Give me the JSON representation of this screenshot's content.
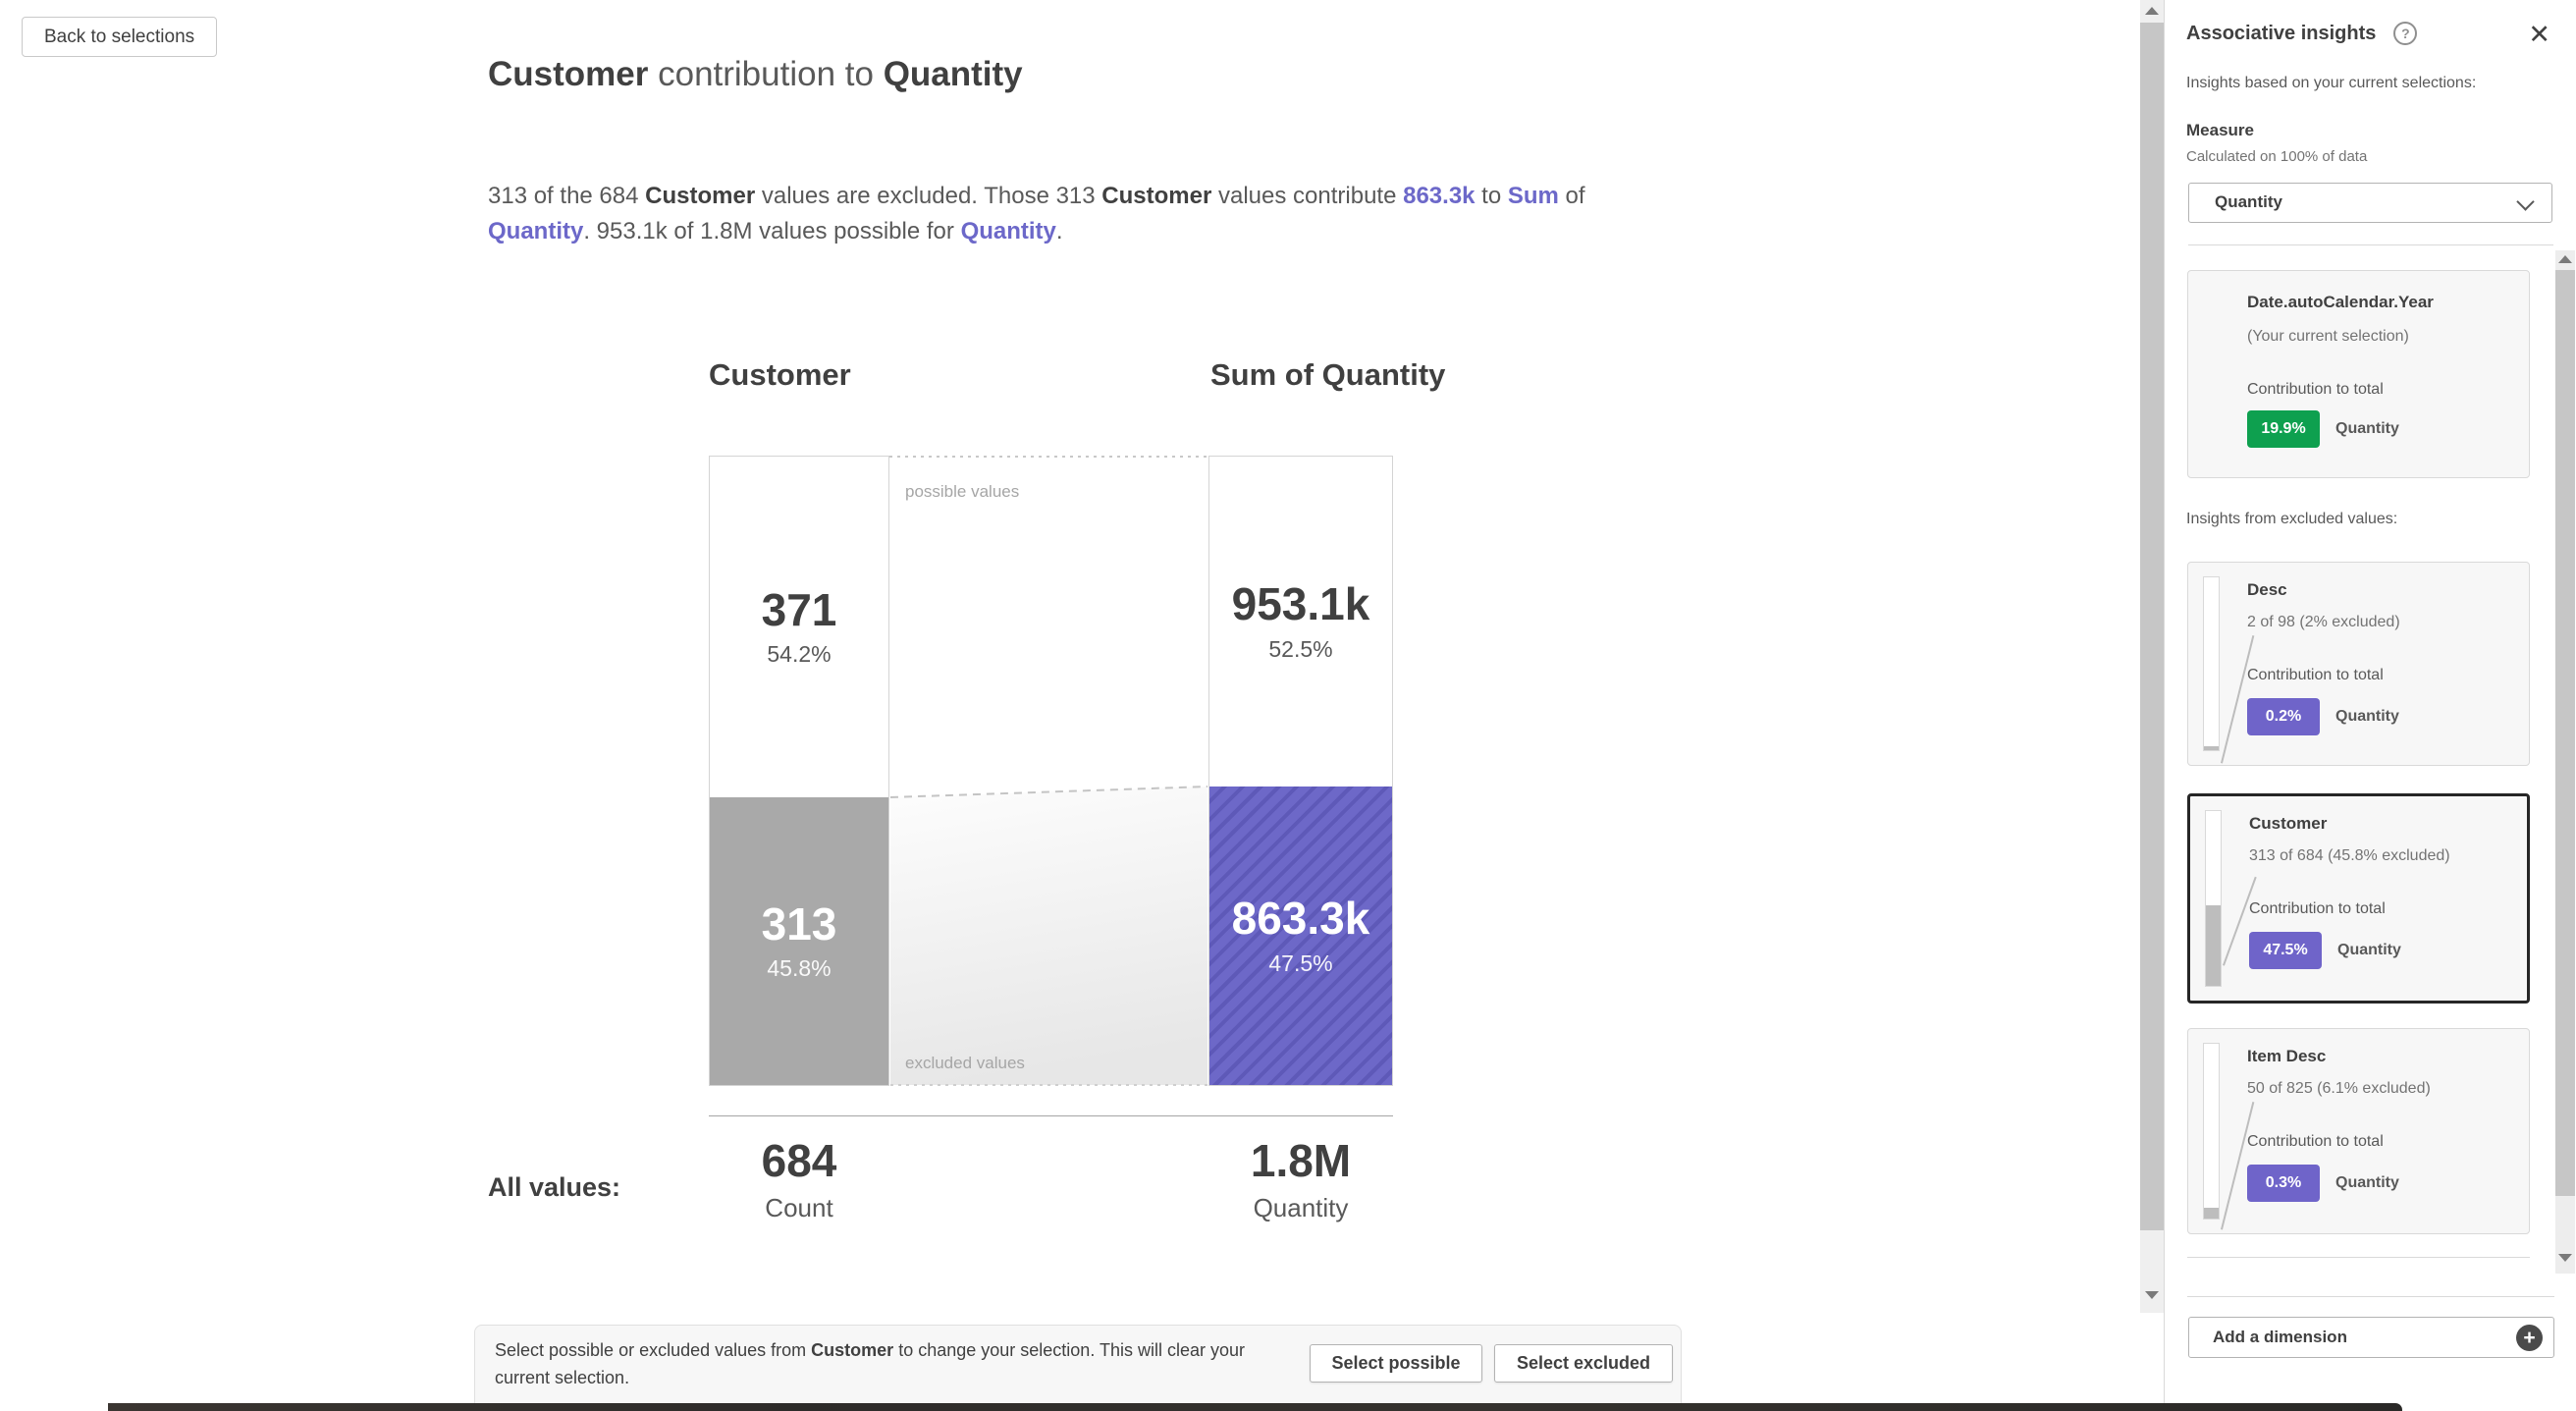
{
  "colors": {
    "green_badge": "#0ea04f",
    "purple_badge": "#6f64c9",
    "excluded_bar_gray": "#a9a9a9",
    "excluded_bar_purple": "#6d68c8",
    "excluded_bar_purple_stripe": "#5e59b8",
    "minibar_gray": "#bdbdbd"
  },
  "main": {
    "back_button": "Back to selections",
    "title": {
      "bold1": "Customer",
      "mid": " contribution to ",
      "bold2": "Quantity"
    },
    "description": {
      "p1": "313 of the 684 ",
      "b1": "Customer",
      "p2": " values are excluded. Those 313 ",
      "b2": "Customer",
      "p3": " values contribute ",
      "l1": "863.3k",
      "p4": " to ",
      "l2": "Sum",
      "p5": " of ",
      "l3": "Quantity",
      "p6": ". 953.1k of 1.8M values possible for ",
      "l4": "Quantity",
      "p7": "."
    },
    "all_values_label": "All values:",
    "instruction": {
      "t1": "Select possible or excluded values from ",
      "bold": "Customer",
      "t2": " to change your selection. This will clear your current selection.",
      "select_possible": "Select possible",
      "select_excluded": "Select excluded"
    }
  },
  "chart_data": {
    "type": "bar",
    "title": "Customer contribution to Quantity",
    "region_labels": {
      "possible": "possible values",
      "excluded": "excluded values"
    },
    "columns": [
      {
        "header": "Customer",
        "possible": {
          "value": "371",
          "pct_label": "54.2%",
          "pct": 54.2
        },
        "excluded": {
          "value": "313",
          "pct_label": "45.8%",
          "pct": 45.8
        },
        "total": {
          "value": "684",
          "label": "Count"
        }
      },
      {
        "header": "Sum of Quantity",
        "possible": {
          "value": "953.1k",
          "pct_label": "52.5%",
          "pct": 52.5
        },
        "excluded": {
          "value": "863.3k",
          "pct_label": "47.5%",
          "pct": 47.5
        },
        "total": {
          "value": "1.8M",
          "label": "Quantity"
        }
      }
    ]
  },
  "panel": {
    "title": "Associative insights",
    "subtitle": "Insights based on your current selections:",
    "measure_label": "Measure",
    "measure_note": "Calculated on 100% of data",
    "measure_value": "Quantity",
    "current_card": {
      "title": "Date.autoCalendar.Year",
      "subtitle": "(Your current selection)",
      "contribution_label": "Contribution to total",
      "pct": "19.9%",
      "measure": "Quantity"
    },
    "excluded_header": "Insights from excluded values:",
    "cards": [
      {
        "title": "Desc",
        "subtitle": "2 of 98 (2% excluded)",
        "contribution_label": "Contribution to total",
        "pct": "0.2%",
        "measure": "Quantity",
        "excluded_pct": 2
      },
      {
        "title": "Customer",
        "subtitle": "313 of 684 (45.8% excluded)",
        "contribution_label": "Contribution to total",
        "pct": "47.5%",
        "measure": "Quantity",
        "excluded_pct": 45.8
      },
      {
        "title": "Item Desc",
        "subtitle": "50 of 825 (6.1% excluded)",
        "contribution_label": "Contribution to total",
        "pct": "0.3%",
        "measure": "Quantity",
        "excluded_pct": 6.1
      }
    ],
    "add_dimension": "Add a dimension"
  }
}
